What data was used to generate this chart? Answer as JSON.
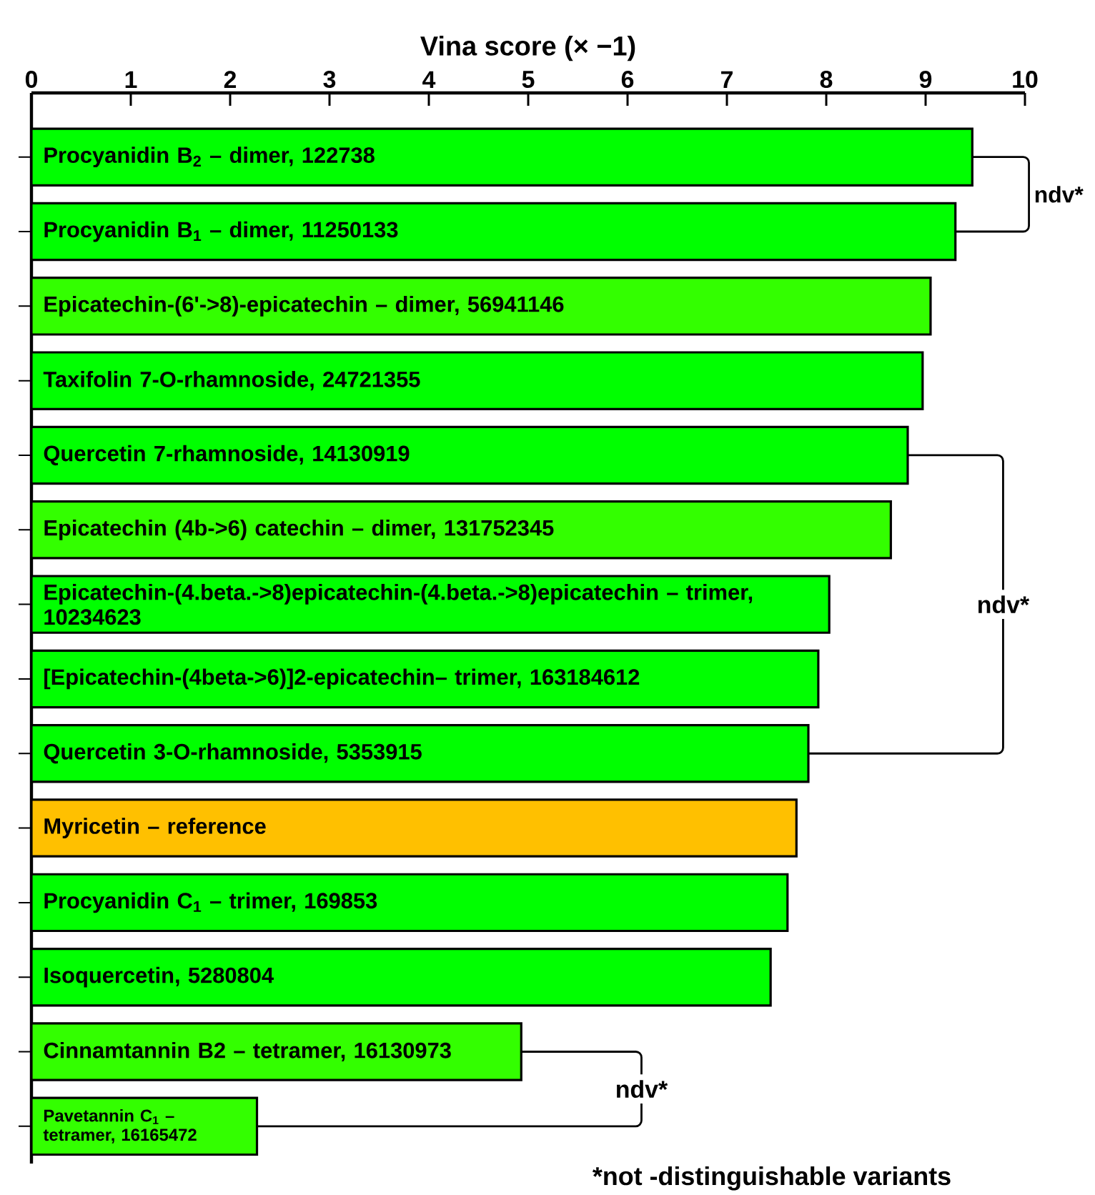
{
  "chart_data": {
    "type": "bar",
    "orientation": "horizontal",
    "xlabel": "Vina score (× −1)",
    "categories": [
      "Procyanidin B$_{2}$ – dimer, 122738",
      "Procyanidin B$_{1}$ – dimer, 11250133",
      "Epicatechin-(6'->8)-epicatechin – dimer, 56941146",
      "Taxifolin 7-O-rhamnoside, 24721355",
      "Quercetin 7-rhamnoside, 14130919",
      "Epicatechin (4b->6) catechin – dimer, 131752345",
      "Epicatechin-(4.beta.->8)epicatechin-(4.beta.->8)epicatechin – trimer,  10234623",
      "[Epicatechin-(4beta->6)]2-epicatechin– trimer, 163184612",
      "Quercetin 3-O-rhamnoside, 5353915",
      "Myricetin – reference",
      "Procyanidin C$_{1}$ – trimer, 169853",
      "Isoquercetin, 5280804",
      "Cinnamtannin B2 – tetramer, 16130973",
      "Pavetannin C$_{1}$ – tetramer, 16165472"
    ],
    "values": [
      9.47,
      9.3,
      9.05,
      8.97,
      8.82,
      8.65,
      8.03,
      7.92,
      7.82,
      7.7,
      7.61,
      7.44,
      4.93,
      2.27
    ],
    "colors": [
      "#00ff00",
      "#00ff00",
      "#33ff00",
      "#00ff00",
      "#00ff00",
      "#33ff00",
      "#00ff00",
      "#00ff00",
      "#00ff00",
      "#ffc000",
      "#00ff00",
      "#00ff00",
      "#33ff00",
      "#33ff00"
    ],
    "xlim": [
      0,
      10
    ],
    "xticks": [
      0,
      1,
      2,
      3,
      4,
      5,
      6,
      7,
      8,
      9,
      10
    ],
    "annotations": [
      "ndv*",
      "ndv*",
      "ndv*",
      "*not -distinguishable variants"
    ]
  }
}
